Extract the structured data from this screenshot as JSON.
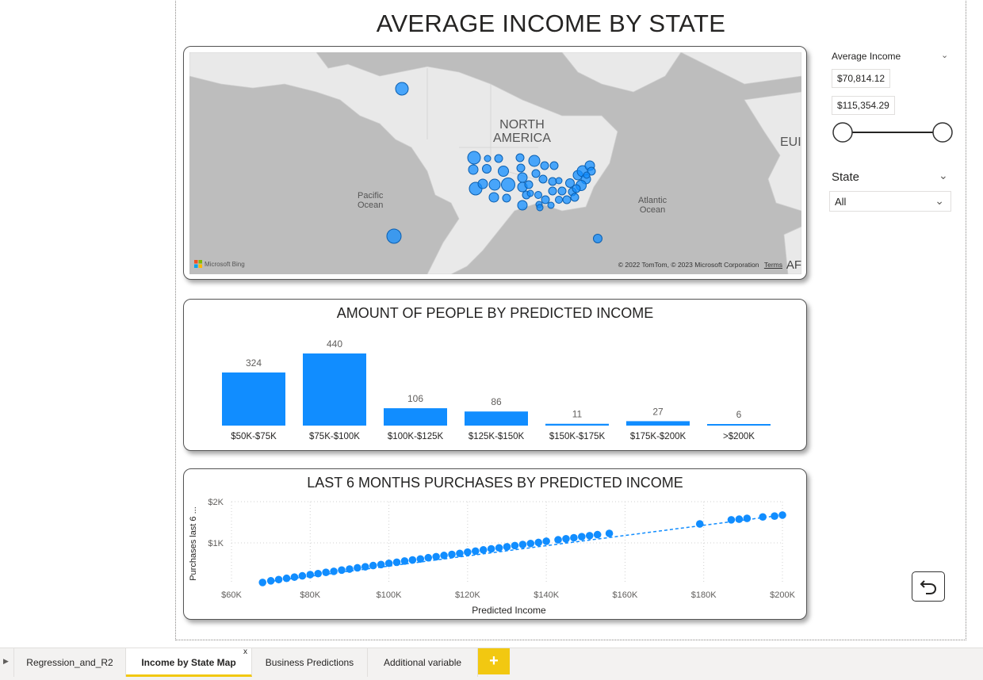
{
  "page": {
    "title": "AVERAGE INCOME BY STATE"
  },
  "map": {
    "labels": {
      "north_america": "NORTH\nAMERICA",
      "pacific": "Pacific\nOcean",
      "atlantic": "Atlantic\nOcean",
      "europe_partial": "EUI",
      "africa_partial": "AF"
    },
    "bing_label": "Microsoft Bing",
    "copyright": "© 2022 TomTom, © 2023 Microsoft Corporation",
    "terms": "Terms"
  },
  "slicers": {
    "income": {
      "title": "Average Income",
      "min": "$70,814.12",
      "max": "$115,354.29",
      "range_fraction": [
        0,
        1
      ]
    },
    "state": {
      "title": "State",
      "value": "All"
    }
  },
  "bar_chart": {
    "title": "AMOUNT OF PEOPLE BY PREDICTED INCOME"
  },
  "scatter_chart": {
    "title": "LAST 6 MONTHS PURCHASES BY PREDICTED INCOME",
    "xlabel": "Predicted Income",
    "ylabel": "Purchases last 6 ..."
  },
  "chart_data": [
    {
      "type": "bar",
      "title": "AMOUNT OF PEOPLE BY PREDICTED INCOME",
      "categories": [
        "$50K-$75K",
        "$75K-$100K",
        "$100K-$125K",
        "$125K-$150K",
        "$150K-$175K",
        "$175K-$200K",
        ">$200K"
      ],
      "values": [
        324,
        440,
        106,
        86,
        11,
        27,
        6
      ],
      "ylim": [
        0,
        440
      ],
      "color": "#118DFF"
    },
    {
      "type": "scatter",
      "title": "LAST 6 MONTHS PURCHASES BY PREDICTED INCOME",
      "xlabel": "Predicted Income",
      "ylabel": "Purchases last 6 ...",
      "xticks": [
        "$60K",
        "$80K",
        "$100K",
        "$120K",
        "$140K",
        "$160K",
        "$180K",
        "$200K"
      ],
      "yticks": [
        "$1K",
        "$2K"
      ],
      "xlim": [
        60000,
        200000
      ],
      "ylim": [
        0,
        2000
      ],
      "trendline": "dashed",
      "color": "#118DFF",
      "x": [
        67900,
        70000,
        72000,
        74000,
        76000,
        78000,
        80000,
        82000,
        84000,
        86000,
        88000,
        90000,
        92000,
        94000,
        96000,
        98000,
        100000,
        102000,
        104000,
        106000,
        108000,
        110000,
        112000,
        114000,
        116000,
        118000,
        120000,
        122000,
        124000,
        126000,
        128000,
        130000,
        132000,
        134000,
        136000,
        138000,
        140000,
        143000,
        145000,
        147000,
        149000,
        151000,
        153000,
        156000,
        179000,
        187000,
        189000,
        191000,
        195000,
        198000,
        200000
      ],
      "y": [
        40,
        80,
        110,
        140,
        170,
        200,
        230,
        255,
        285,
        310,
        340,
        365,
        395,
        420,
        450,
        475,
        505,
        530,
        560,
        585,
        610,
        640,
        665,
        695,
        720,
        745,
        775,
        800,
        830,
        855,
        880,
        905,
        935,
        960,
        985,
        1010,
        1040,
        1075,
        1100,
        1125,
        1150,
        1175,
        1200,
        1230,
        1460,
        1560,
        1575,
        1595,
        1630,
        1650,
        1675
      ]
    }
  ],
  "tabs": [
    {
      "label": "Regression_and_R2",
      "active": false
    },
    {
      "label": "Income by State Map",
      "active": true
    },
    {
      "label": "Business Predictions",
      "active": false
    },
    {
      "label": "Additional variable",
      "active": false
    }
  ],
  "tab_close": "x",
  "add_tab": "+",
  "colors": {
    "accent": "#118DFF",
    "map_bg": "#BDBDBD",
    "land": "#E8E8E8",
    "tab_active": "#F2C811"
  }
}
